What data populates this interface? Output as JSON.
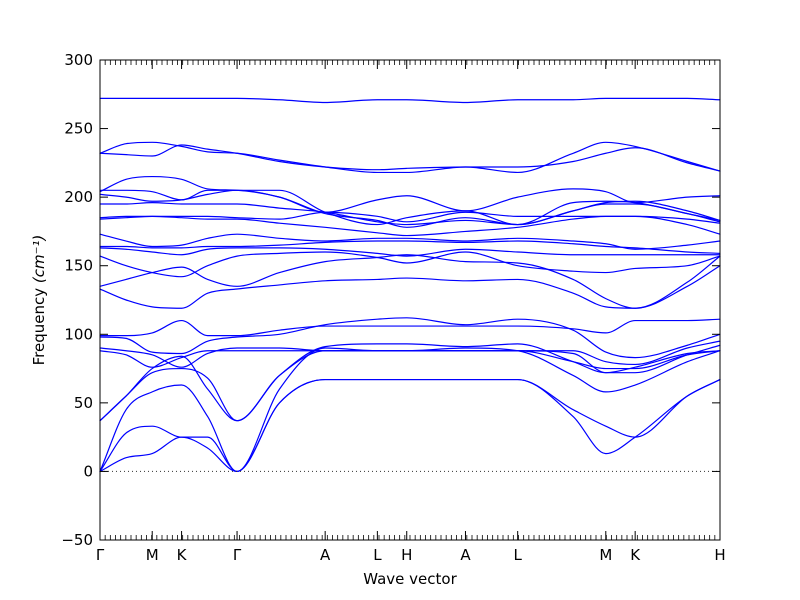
{
  "chart_data": {
    "type": "line",
    "xlabel": "Wave vector",
    "ylabel": "Frequency ",
    "ylabel_unit": "(cm⁻¹)",
    "ylim": [
      -50,
      300
    ],
    "yticks": [
      -50,
      0,
      50,
      100,
      150,
      200,
      250,
      300
    ],
    "xlim": [
      0,
      19
    ],
    "high_symmetry_points": [
      {
        "label": "Γ",
        "x": 0
      },
      {
        "label": "M",
        "x": 1.6
      },
      {
        "label": "K",
        "x": 2.5
      },
      {
        "label": "Γ",
        "x": 4.2
      },
      {
        "label": "A",
        "x": 6.9
      },
      {
        "label": "L",
        "x": 8.5
      },
      {
        "label": "H",
        "x": 9.4
      },
      {
        "label": "A",
        "x": 11.2
      },
      {
        "label": "L",
        "x": 12.8
      },
      {
        "label": "M",
        "x": 15.5
      },
      {
        "label": "K",
        "x": 16.4
      },
      {
        "label": "H",
        "x": 19
      }
    ],
    "zero_line": true,
    "line_color": "#0000ff",
    "bands": [
      {
        "x": [
          0,
          0.8,
          1.6,
          2.5,
          3.3,
          4.2,
          5.5,
          6.9,
          8.5,
          9.4,
          11.2,
          12.8,
          14.5,
          15.5,
          16.4,
          18,
          19
        ],
        "y": [
          0,
          10,
          13,
          25,
          17,
          0,
          50,
          67,
          67,
          67,
          67,
          67,
          40,
          13,
          25,
          55,
          67
        ]
      },
      {
        "x": [
          0,
          0.8,
          1.6,
          2.5,
          3.3,
          4.2,
          5.5,
          6.9,
          8.5,
          9.4,
          11.2,
          12.8,
          14.5,
          15.5,
          16.4,
          18,
          19
        ],
        "y": [
          0,
          28,
          33,
          25,
          25,
          0,
          50,
          67,
          67,
          67,
          67,
          67,
          45,
          33,
          25,
          55,
          67
        ]
      },
      {
        "x": [
          0,
          0.8,
          1.6,
          2.5,
          3.3,
          4.2,
          5.5,
          6.9,
          8.5,
          9.4,
          11.2,
          12.8,
          14.5,
          15.5,
          16.4,
          18,
          19
        ],
        "y": [
          0,
          45,
          58,
          63,
          40,
          0,
          60,
          90,
          88,
          88,
          90,
          88,
          70,
          58,
          63,
          80,
          88
        ]
      },
      {
        "x": [
          0,
          0.8,
          1.6,
          2.5,
          3.3,
          4.2,
          5.5,
          6.9,
          8.5,
          9.4,
          11.2,
          12.8,
          14.5,
          15.5,
          16.4,
          18,
          19
        ],
        "y": [
          37,
          55,
          75,
          84,
          60,
          37,
          70,
          91,
          93,
          93,
          91,
          93,
          80,
          72,
          72,
          85,
          92
        ]
      },
      {
        "x": [
          0,
          0.8,
          1.6,
          2.5,
          3.3,
          4.2,
          5.5,
          6.9,
          8.5,
          9.4,
          11.2,
          12.8,
          14.5,
          15.5,
          16.4,
          18,
          19
        ],
        "y": [
          37,
          55,
          72,
          75,
          68,
          37,
          70,
          88,
          88,
          88,
          88,
          88,
          80,
          75,
          75,
          85,
          88
        ]
      },
      {
        "x": [
          0,
          0.8,
          1.6,
          2.5,
          3.3,
          4.2,
          5.5,
          6.9,
          8.5,
          9.4,
          11.2,
          12.8,
          14.5,
          15.5,
          16.4,
          18,
          19
        ],
        "y": [
          88,
          85,
          76,
          83,
          88,
          88,
          88,
          88,
          88,
          88,
          88,
          88,
          86,
          72,
          76,
          86,
          88
        ]
      },
      {
        "x": [
          0,
          0.8,
          1.6,
          2.5,
          3.3,
          4.2,
          5.5,
          6.9,
          8.5,
          9.4,
          11.2,
          12.8,
          14.5,
          15.5,
          16.4,
          18,
          19
        ],
        "y": [
          90,
          88,
          85,
          76,
          86,
          90,
          90,
          88,
          88,
          88,
          88,
          88,
          88,
          80,
          78,
          90,
          95
        ]
      },
      {
        "x": [
          0,
          0.8,
          1.6,
          2.5,
          3.3,
          4.2,
          5.5,
          6.9,
          8.5,
          9.4,
          11.2,
          12.8,
          14.5,
          15.5,
          16.4,
          18,
          19
        ],
        "y": [
          98,
          97,
          87,
          86,
          95,
          98,
          100,
          107,
          111,
          112,
          107,
          111,
          103,
          87,
          83,
          92,
          100
        ]
      },
      {
        "x": [
          0,
          0.8,
          1.6,
          2.5,
          3.3,
          4.2,
          5.5,
          6.9,
          8.5,
          9.4,
          11.2,
          12.8,
          14.5,
          15.5,
          16.4,
          18,
          19
        ],
        "y": [
          99,
          99,
          101,
          110,
          99,
          99,
          103,
          106,
          106,
          106,
          106,
          106,
          104,
          101,
          110,
          110,
          111
        ]
      },
      {
        "x": [
          0,
          0.8,
          1.6,
          2.5,
          3.3,
          4.2,
          5.5,
          6.9,
          8.5,
          9.4,
          11.2,
          12.8,
          14.5,
          15.5,
          16.4,
          18,
          19
        ],
        "y": [
          133,
          125,
          120,
          119,
          130,
          133,
          136,
          139,
          140,
          141,
          139,
          140,
          130,
          120,
          119,
          135,
          150
        ]
      },
      {
        "x": [
          0,
          0.8,
          1.6,
          2.5,
          3.3,
          4.2,
          5.5,
          6.9,
          8.5,
          9.4,
          11.2,
          12.8,
          14.5,
          15.5,
          16.4,
          18,
          19
        ],
        "y": [
          135,
          140,
          145,
          149,
          140,
          135,
          145,
          153,
          156,
          158,
          153,
          152,
          140,
          126,
          119,
          138,
          157
        ]
      },
      {
        "x": [
          0,
          0.8,
          1.6,
          2.5,
          3.3,
          4.2,
          5.5,
          6.9,
          8.5,
          9.4,
          11.2,
          12.8,
          14.5,
          15.5,
          16.4,
          18,
          19
        ],
        "y": [
          157,
          150,
          145,
          142,
          150,
          157,
          159,
          160,
          156,
          152,
          160,
          150,
          146,
          145,
          148,
          150,
          157
        ]
      },
      {
        "x": [
          0,
          0.8,
          1.6,
          2.5,
          3.3,
          4.2,
          5.5,
          6.9,
          8.5,
          9.4,
          11.2,
          12.8,
          14.5,
          15.5,
          16.4,
          18,
          19
        ],
        "y": [
          163,
          162,
          160,
          158,
          162,
          163,
          163,
          162,
          159,
          157,
          162,
          160,
          158,
          158,
          158,
          158,
          158
        ]
      },
      {
        "x": [
          0,
          0.8,
          1.6,
          2.5,
          3.3,
          4.2,
          5.5,
          6.9,
          8.5,
          9.4,
          11.2,
          12.8,
          14.5,
          15.5,
          16.4,
          18,
          19
        ],
        "y": [
          164,
          164,
          163,
          163,
          164,
          164,
          165,
          167,
          168,
          168,
          167,
          168,
          166,
          164,
          163,
          160,
          159
        ]
      },
      {
        "x": [
          0,
          0.8,
          1.6,
          2.5,
          3.3,
          4.2,
          5.5,
          6.9,
          8.5,
          9.4,
          11.2,
          12.8,
          14.5,
          15.5,
          16.4,
          18,
          19
        ],
        "y": [
          173,
          168,
          164,
          165,
          170,
          173,
          170,
          168,
          170,
          170,
          168,
          170,
          168,
          166,
          162,
          165,
          168
        ]
      },
      {
        "x": [
          0,
          0.8,
          1.6,
          2.5,
          3.3,
          4.2,
          5.5,
          6.9,
          8.5,
          9.4,
          11.2,
          12.8,
          14.5,
          15.5,
          16.4,
          18,
          19
        ],
        "y": [
          184,
          185,
          186,
          185,
          184,
          184,
          181,
          178,
          174,
          172,
          175,
          178,
          184,
          186,
          186,
          180,
          173
        ]
      },
      {
        "x": [
          0,
          0.8,
          1.6,
          2.5,
          3.3,
          4.2,
          5.5,
          6.9,
          8.5,
          9.4,
          11.2,
          12.8,
          14.5,
          15.5,
          16.4,
          18,
          19
        ],
        "y": [
          185,
          186,
          186,
          186,
          186,
          185,
          184,
          189,
          186,
          182,
          189,
          186,
          186,
          186,
          186,
          184,
          181
        ]
      },
      {
        "x": [
          0,
          0.8,
          1.6,
          2.5,
          3.3,
          4.2,
          5.5,
          6.9,
          8.5,
          9.4,
          11.2,
          12.8,
          14.5,
          15.5,
          16.4,
          18,
          19
        ],
        "y": [
          195,
          195,
          196,
          195,
          195,
          195,
          192,
          189,
          182,
          180,
          183,
          180,
          190,
          195,
          195,
          188,
          183
        ]
      },
      {
        "x": [
          0,
          0.8,
          1.6,
          2.5,
          3.3,
          4.2,
          5.5,
          6.9,
          8.5,
          9.4,
          11.2,
          12.8,
          14.5,
          15.5,
          16.4,
          18,
          19
        ],
        "y": [
          202,
          200,
          197,
          198,
          202,
          205,
          200,
          189,
          198,
          201,
          190,
          200,
          206,
          204,
          196,
          200,
          201
        ]
      },
      {
        "x": [
          0,
          0.8,
          1.6,
          2.5,
          3.3,
          4.2,
          5.5,
          6.9,
          8.5,
          9.4,
          11.2,
          12.8,
          14.5,
          15.5,
          16.4,
          18,
          19
        ],
        "y": [
          205,
          205,
          204,
          198,
          205,
          205,
          205,
          189,
          180,
          185,
          190,
          180,
          190,
          196,
          197,
          190,
          183
        ]
      },
      {
        "x": [
          0,
          0.8,
          1.6,
          2.5,
          3.3,
          4.2,
          5.5,
          6.9,
          8.5,
          9.4,
          11.2,
          12.8,
          14.5,
          15.5,
          16.4,
          18,
          19
        ],
        "y": [
          204,
          213,
          215,
          213,
          206,
          205,
          200,
          188,
          183,
          178,
          185,
          180,
          196,
          197,
          196,
          188,
          182
        ]
      },
      {
        "x": [
          0,
          0.8,
          1.6,
          2.5,
          3.3,
          4.2,
          5.5,
          6.9,
          8.5,
          9.4,
          11.2,
          12.8,
          14.5,
          15.5,
          16.4,
          18,
          19
        ],
        "y": [
          232,
          239,
          240,
          237,
          233,
          232,
          227,
          222,
          218,
          218,
          222,
          218,
          232,
          240,
          237,
          226,
          219
        ]
      },
      {
        "x": [
          0,
          0.8,
          1.6,
          2.5,
          3.3,
          4.2,
          5.5,
          6.9,
          8.5,
          9.4,
          11.2,
          12.8,
          14.5,
          15.5,
          16.4,
          18,
          19
        ],
        "y": [
          232,
          231,
          230,
          238,
          235,
          232,
          226,
          222,
          220,
          221,
          222,
          222,
          226,
          232,
          236,
          225,
          219
        ]
      },
      {
        "x": [
          0,
          0.8,
          1.6,
          2.5,
          3.3,
          4.2,
          5.5,
          6.9,
          8.5,
          9.4,
          11.2,
          12.8,
          14.5,
          15.5,
          16.4,
          18,
          19
        ],
        "y": [
          272,
          272,
          272,
          272,
          272,
          272,
          271,
          269,
          271,
          271,
          269,
          271,
          271,
          272,
          272,
          272,
          271
        ]
      }
    ]
  }
}
